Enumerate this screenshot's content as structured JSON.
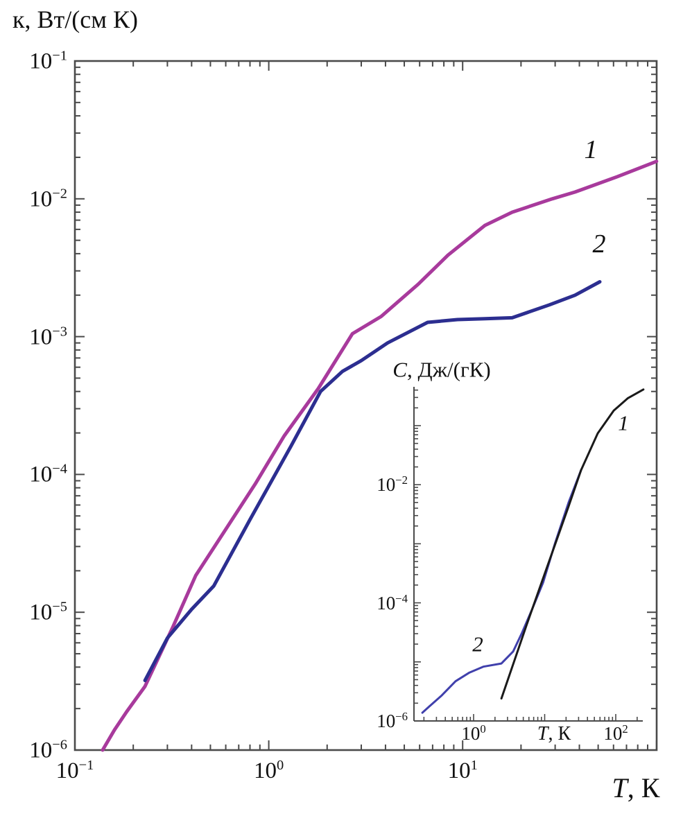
{
  "chart_data": [
    {
      "type": "line",
      "role": "main-plot",
      "ylabel": "к, Вт/(см К)",
      "xlabel_italic": "T",
      "xlabel_rest": ", К",
      "x_scale": "log",
      "y_scale": "log",
      "xlim": [
        0.1,
        100
      ],
      "ylim": [
        1e-06,
        0.1
      ],
      "x_labeled_tick_exponents": [
        -1,
        0,
        1
      ],
      "y_labeled_tick_exponents": [
        -1,
        -2,
        -3,
        -4,
        -5,
        -6
      ],
      "grid": false,
      "legend": "none, curves annotated in-plot",
      "series": [
        {
          "name": "1",
          "color": "#a83a9c",
          "x": [
            0.139,
            0.16,
            0.185,
            0.23,
            0.32,
            0.42,
            0.6,
            0.85,
            1.2,
            1.8,
            2.7,
            3.8,
            5.9,
            8.4,
            13,
            18,
            29,
            38,
            63,
            100
          ],
          "y": [
            1e-06,
            1.4e-06,
            1.9e-06,
            2.9e-06,
            7.8e-06,
            1.85e-05,
            4e-05,
            8.5e-05,
            0.00019,
            0.00042,
            0.00105,
            0.0014,
            0.0024,
            0.0039,
            0.0064,
            0.008,
            0.01,
            0.0112,
            0.0145,
            0.0187
          ]
        },
        {
          "name": "2",
          "color": "#2c2e90",
          "x": [
            0.23,
            0.3,
            0.4,
            0.52,
            0.8,
            1.3,
            1.85,
            2.4,
            3.0,
            4.1,
            6.6,
            9.4,
            13,
            18,
            28,
            38,
            51
          ],
          "y": [
            3.2e-06,
            6.5e-06,
            1.05e-05,
            1.55e-05,
            4.7e-05,
            0.00016,
            0.0004,
            0.00056,
            0.00067,
            0.0009,
            0.00127,
            0.00133,
            0.00135,
            0.00137,
            0.0017,
            0.002,
            0.0025
          ]
        }
      ]
    },
    {
      "type": "line",
      "role": "inset-plot",
      "title_italic": "C",
      "title_rest": ", Дж/(гК)",
      "xlabel_italic": "T",
      "xlabel_rest": ", К",
      "x_scale": "log",
      "y_scale": "log",
      "xlim": [
        0.145,
        240
      ],
      "ylim": [
        1e-06,
        0.45
      ],
      "x_labeled_tick_exponents": [
        0,
        2
      ],
      "y_labeled_tick_exponents": [
        -2,
        -4,
        -6
      ],
      "grid": false,
      "series": [
        {
          "name": "1",
          "color": "#1a1a1a",
          "x": [
            2.46,
            5.6,
            11.1,
            21.7,
            32.5,
            55.8,
            93.6,
            147,
            245
          ],
          "y": [
            2.4e-06,
            4.3e-05,
            0.00044,
            0.0043,
            0.0177,
            0.074,
            0.18,
            0.29,
            0.41
          ]
        },
        {
          "name": "2",
          "color": "#4040ac",
          "x": [
            0.19,
            0.243,
            0.356,
            0.557,
            0.874,
            1.37,
            2.46,
            3.6,
            4.8,
            6.6,
            9.5,
            13.9,
            21.7,
            32.5
          ],
          "y": [
            1.38e-06,
            1.8e-06,
            2.7e-06,
            4.7e-06,
            6.6e-06,
            8.3e-06,
            9.4e-06,
            1.5e-05,
            3.1e-05,
            7.6e-05,
            0.00022,
            0.001,
            0.005,
            0.0177
          ]
        }
      ]
    }
  ],
  "colors": {
    "axis": "#4a4a4a",
    "text": "#111111",
    "background": "#ffffff"
  }
}
